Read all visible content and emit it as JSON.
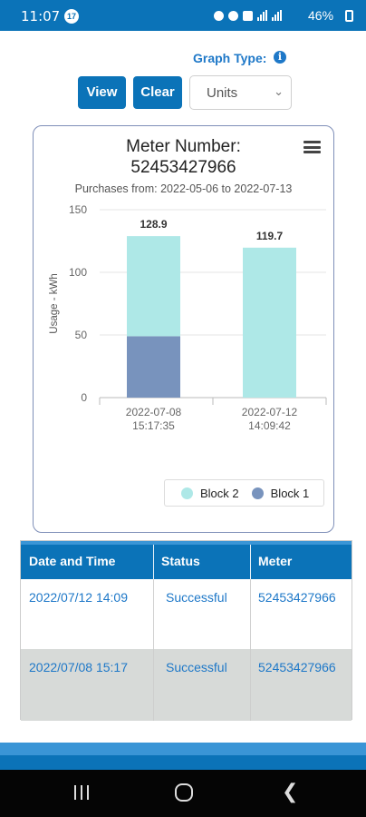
{
  "status_bar": {
    "time": "11:07",
    "notif_badge": "17",
    "battery": "46%"
  },
  "controls": {
    "graph_type_label": "Graph Type:",
    "info_icon": "i",
    "view_label": "View",
    "clear_label": "Clear",
    "units_select": "Units"
  },
  "chart_data": {
    "type": "bar",
    "stacked": true,
    "title_line1": "Meter Number:",
    "title_line2": "52453427966",
    "subtitle": "Purchases from: 2022-05-06 to 2022-07-13",
    "ylabel": "Usage - kWh",
    "ylim": [
      0,
      150
    ],
    "yticks": [
      "0",
      "50",
      "100",
      "150"
    ],
    "categories": [
      [
        "2022-07-08",
        "15:17:35"
      ],
      [
        "2022-07-12",
        "14:09:42"
      ]
    ],
    "series": [
      {
        "name": "Block 1",
        "color": "#7893bd",
        "values": [
          49,
          0
        ]
      },
      {
        "name": "Block 2",
        "color": "#aee8e7",
        "values": [
          79.9,
          119.7
        ]
      }
    ],
    "totals": [
      "128.9",
      "119.7"
    ],
    "legend_position": "bottom-right",
    "grid": true
  },
  "table": {
    "headers": [
      "Date and Time",
      "Status",
      "Meter"
    ],
    "rows": [
      [
        "2022/07/12 14:09",
        "Successful",
        "52453427966"
      ],
      [
        "2022/07/08 15:17",
        "Successful",
        "52453427966"
      ]
    ]
  }
}
